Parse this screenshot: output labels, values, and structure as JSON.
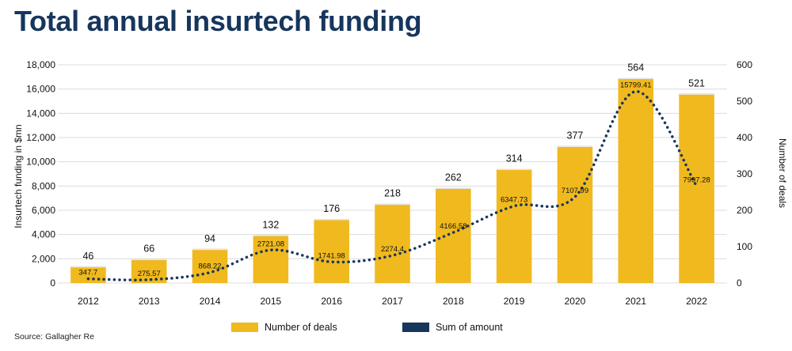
{
  "title": "Total annual insurtech funding",
  "source": "Source: Gallagher Re",
  "colors": {
    "bar": "#f0b91e",
    "line": "#17365d",
    "title": "#17365d",
    "grid": "#dcdcdc"
  },
  "chart_data": {
    "type": "bar",
    "categories": [
      "2012",
      "2013",
      "2014",
      "2015",
      "2016",
      "2017",
      "2018",
      "2019",
      "2020",
      "2021",
      "2022"
    ],
    "series": [
      {
        "name": "Number of deals",
        "type": "bar",
        "axis": "right",
        "values": [
          46,
          66,
          94,
          132,
          176,
          218,
          262,
          314,
          377,
          564,
          521
        ]
      },
      {
        "name": "Sum of amount",
        "type": "line",
        "style": "dotted",
        "axis": "left",
        "values": [
          347.7,
          275.57,
          868.22,
          2721.08,
          1741.98,
          2274.4,
          4166.58,
          6347.73,
          7107.99,
          15799.41,
          7997.28
        ],
        "labels": [
          "347.7",
          "275.57",
          "868.22",
          "2721.08",
          "1741.98",
          "2274.4",
          "4166.58",
          "6347.73",
          "7107.99",
          "15799.41",
          "7997.28"
        ]
      }
    ],
    "ylabel": "Insurtech funding in $mn",
    "y2label": "Number of deals",
    "ylim": [
      0,
      18000
    ],
    "y2lim": [
      0,
      600
    ],
    "yticks": [
      "0",
      "2,000",
      "4,000",
      "6,000",
      "8,000",
      "10,000",
      "12,000",
      "14,000",
      "16,000",
      "18,000"
    ],
    "y2ticks": [
      "0",
      "100",
      "200",
      "300",
      "400",
      "500",
      "600"
    ],
    "grid": true,
    "legend": "bottom"
  }
}
